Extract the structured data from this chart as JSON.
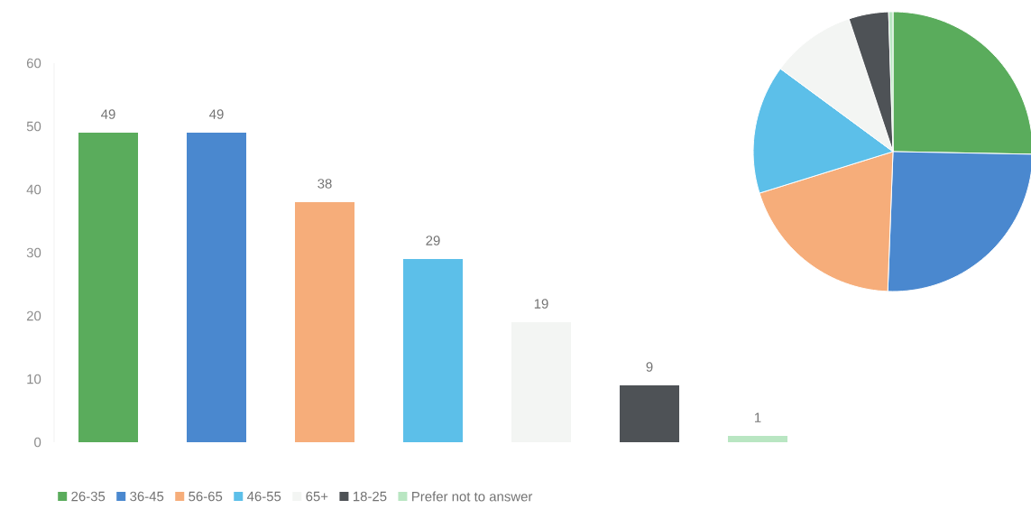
{
  "chart_data": [
    {
      "type": "bar",
      "categories": [
        null,
        null,
        null,
        null,
        null,
        null,
        null
      ],
      "values": [
        49,
        49,
        38,
        29,
        19,
        9,
        1
      ],
      "value_labels": [
        "49",
        "49",
        "38",
        "29",
        "19",
        "9",
        "1"
      ],
      "colors": [
        "#5aac5c",
        "#4a88cf",
        "#f6ad7a",
        "#5cbfe9",
        "#f3f5f3",
        "#4e5256",
        "#b9e6c2"
      ],
      "ylim": [
        0,
        60
      ],
      "yticks": [
        0,
        10,
        20,
        30,
        40,
        50,
        60
      ],
      "tick_labels": "y"
    },
    {
      "type": "pie",
      "categories": [
        "26-35",
        "36-45",
        "56-65",
        "46-55",
        "65+",
        "18-25",
        "Prefer not to answer"
      ],
      "values": [
        25.3,
        25.3,
        19.6,
        14.9,
        9.8,
        4.6,
        0.5
      ],
      "colors": [
        "#5aac5c",
        "#4a88cf",
        "#f6ad7a",
        "#5cbfe9",
        "#f3f5f3",
        "#4e5256",
        "#b9e6c2"
      ],
      "legend": "bottom"
    }
  ]
}
